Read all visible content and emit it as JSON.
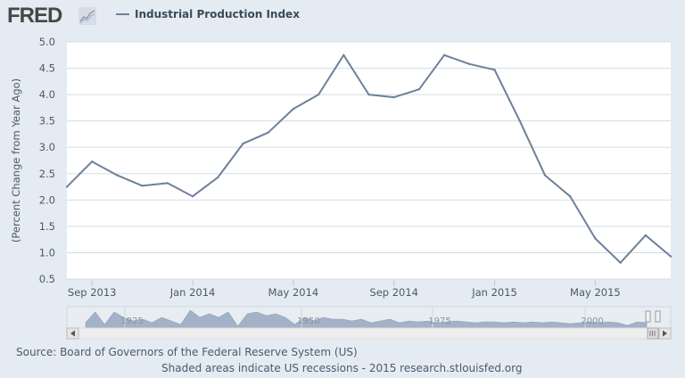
{
  "header": {
    "logo_text": "FRED",
    "legend_label": "Industrial Production Index"
  },
  "colors": {
    "line": "#6e809a",
    "background": "#e4ebf2",
    "plot_bg": "#ffffff",
    "navigator_fill": "#a3b2c6"
  },
  "chart_data": {
    "type": "line",
    "title": "",
    "legend": [
      "Industrial Production Index"
    ],
    "xlabel": "",
    "ylabel": "(Percent Change from Year Ago)",
    "ylim": [
      0.5,
      5.0
    ],
    "y_ticks": [
      "0.5",
      "1.0",
      "1.5",
      "2.0",
      "2.5",
      "3.0",
      "3.5",
      "4.0",
      "4.5",
      "5.0"
    ],
    "x_ticks": [
      {
        "label": "Sep 2013",
        "index": 1
      },
      {
        "label": "Jan 2014",
        "index": 5
      },
      {
        "label": "May 2014",
        "index": 9
      },
      {
        "label": "Sep 2014",
        "index": 13
      },
      {
        "label": "Jan 2015",
        "index": 17
      },
      {
        "label": "May 2015",
        "index": 21
      }
    ],
    "x": [
      "2013-08",
      "2013-09",
      "2013-10",
      "2013-11",
      "2013-12",
      "2014-01",
      "2014-02",
      "2014-03",
      "2014-04",
      "2014-05",
      "2014-06",
      "2014-07",
      "2014-08",
      "2014-09",
      "2014-10",
      "2014-11",
      "2014-12",
      "2015-01",
      "2015-02",
      "2015-03",
      "2015-04",
      "2015-05",
      "2015-06",
      "2015-07",
      "2015-08"
    ],
    "series": [
      {
        "name": "Industrial Production Index",
        "values": [
          2.25,
          2.73,
          2.47,
          2.27,
          2.32,
          2.07,
          2.43,
          3.07,
          3.28,
          3.73,
          4.0,
          4.75,
          4.0,
          3.95,
          4.1,
          4.75,
          4.58,
          4.47,
          3.5,
          2.47,
          2.07,
          1.27,
          0.81,
          1.33,
          0.93
        ]
      }
    ],
    "grid": true,
    "legend_position": "top-left"
  },
  "navigator": {
    "labels": [
      "1925",
      "1950",
      "1975",
      "2000"
    ]
  },
  "footer": {
    "source": "Source: Board of Governors of the Federal Reserve System (US)",
    "note": "Shaded areas indicate US recessions - 2015 research.stlouisfed.org"
  }
}
